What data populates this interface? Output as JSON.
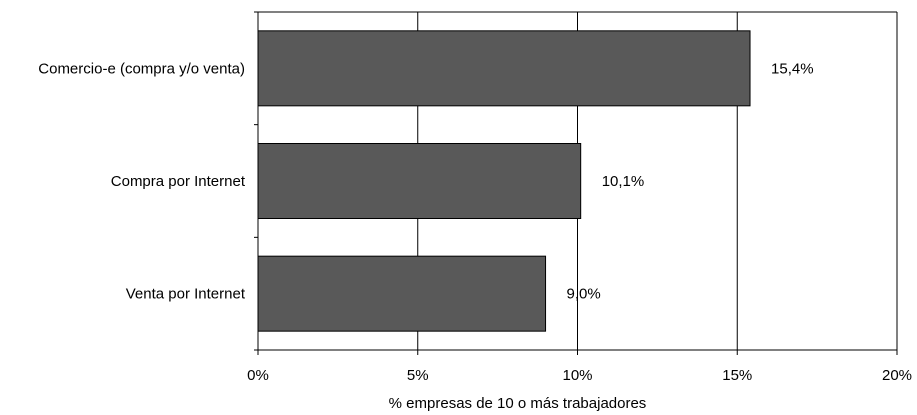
{
  "chart_data": {
    "type": "bar",
    "orientation": "horizontal",
    "categories": [
      "Comercio-e (compra y/o venta)",
      "Compra por Internet",
      "Venta por Internet"
    ],
    "values": [
      15.4,
      10.1,
      9.0
    ],
    "value_labels": [
      "15,4%",
      "10,1%",
      "9,0%"
    ],
    "xlabel": "% empresas de 10 o más trabajadores",
    "xlim": [
      0,
      20
    ],
    "x_ticks": [
      0,
      5,
      10,
      15,
      20
    ],
    "x_tick_labels": [
      "0%",
      "5%",
      "10%",
      "15%",
      "20%"
    ],
    "grid": "vertical",
    "legend": "none",
    "bar_color": "#595959",
    "bar_edge_color": "#000000"
  }
}
